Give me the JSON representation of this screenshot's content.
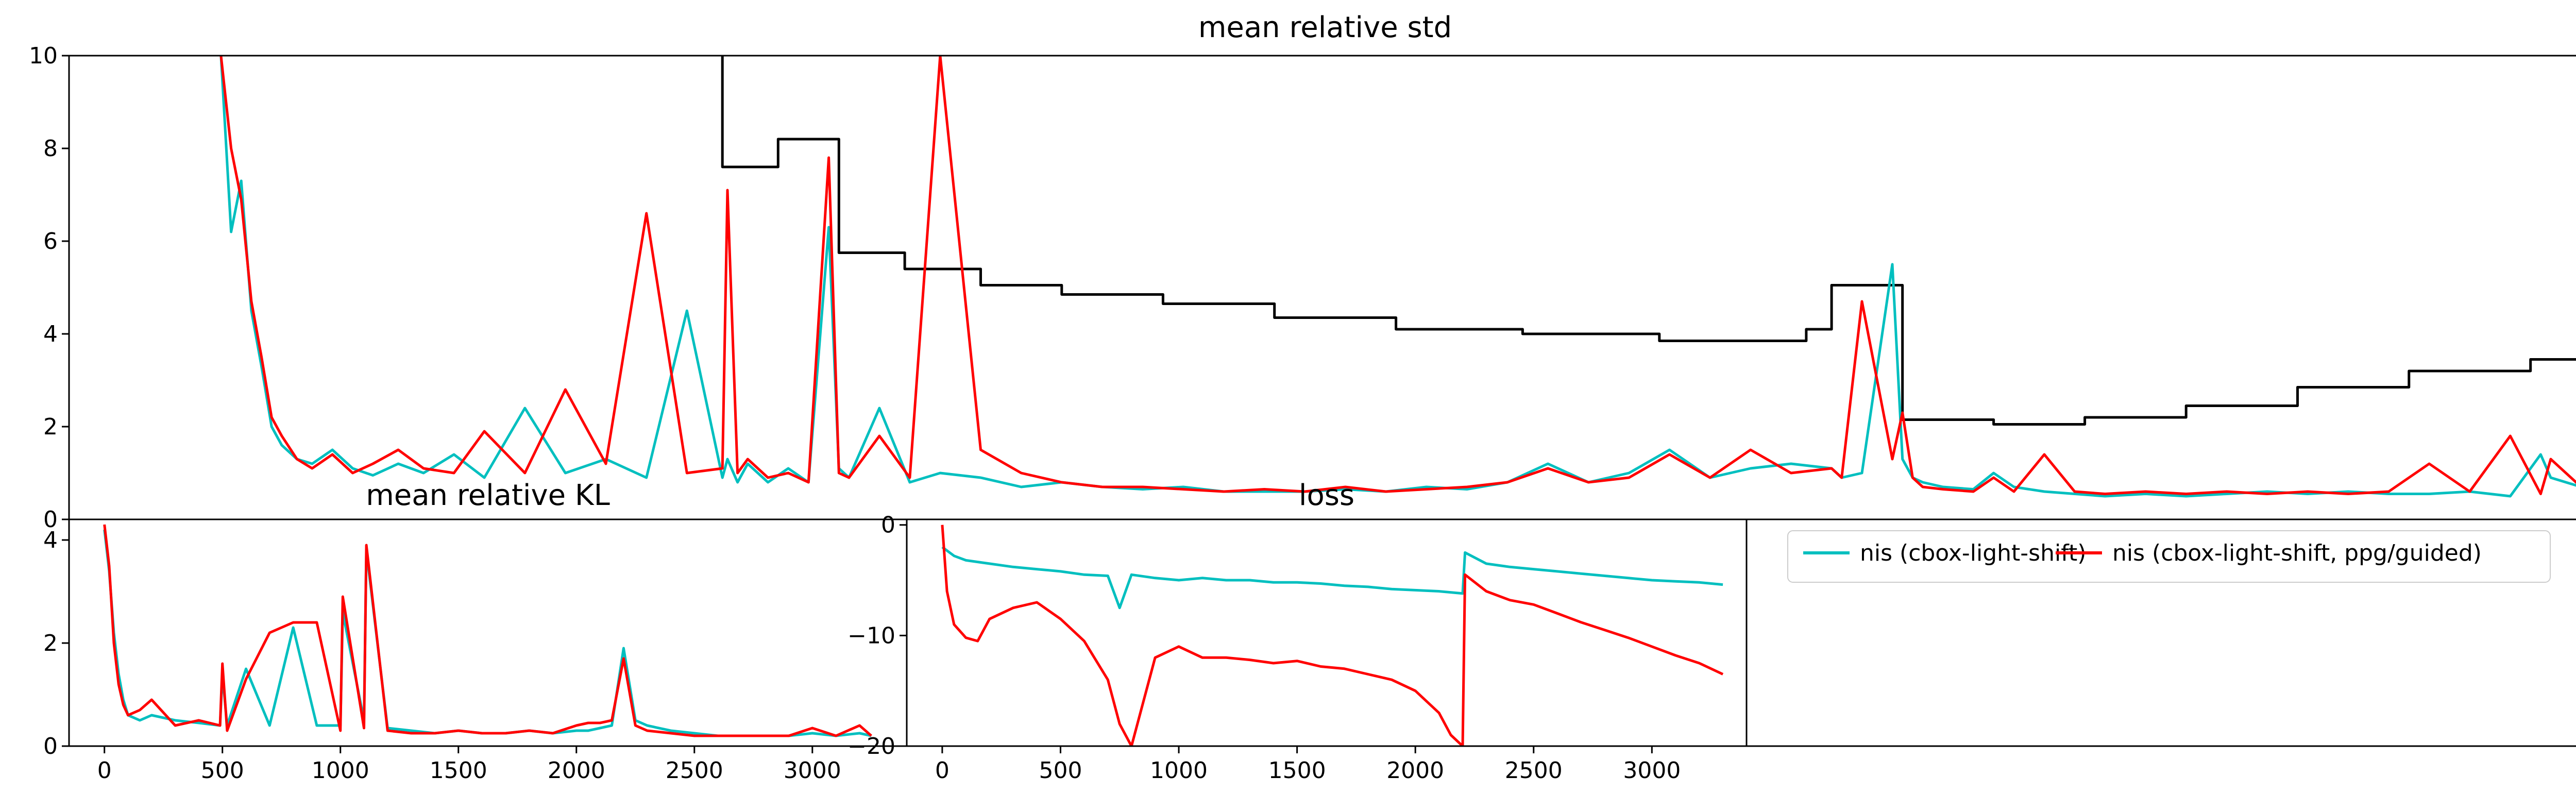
{
  "chart_data": [
    {
      "type": "line",
      "title": "mean relative std",
      "xlabel": "",
      "ylabel": "",
      "xlim": [
        0,
        4960
      ],
      "ylim": [
        0,
        10
      ],
      "grid": false,
      "yticks": [
        "0",
        "2",
        "4",
        "6",
        "8",
        "10"
      ],
      "series": [
        {
          "name": "",
          "color": "#000000",
          "style": "step",
          "x": [
            1290,
            1290,
            1400,
            1400,
            1520,
            1520,
            1650,
            1650,
            1800,
            1800,
            1960,
            1960,
            2160,
            2160,
            2380,
            2380,
            2620,
            2620,
            2870,
            2870,
            3140,
            3140,
            3430,
            3430,
            3480,
            3480,
            3620,
            3620,
            3800,
            3800,
            3980,
            3980,
            4180,
            4180,
            4400,
            4400,
            4620,
            4620,
            4860,
            4860,
            5070
          ],
          "y": [
            10,
            7.6,
            7.6,
            8.2,
            8.2,
            5.75,
            5.75,
            5.4,
            5.4,
            5.05,
            5.05,
            4.85,
            4.85,
            4.65,
            4.65,
            4.35,
            4.35,
            4.1,
            4.1,
            4.0,
            4.0,
            3.85,
            3.85,
            4.1,
            4.1,
            5.05,
            5.05,
            2.15,
            2.15,
            2.05,
            2.05,
            2.2,
            2.2,
            2.45,
            2.45,
            2.85,
            2.85,
            3.2,
            3.2,
            3.45,
            3.45
          ]
        },
        {
          "name": "",
          "color": "#00bfbf",
          "x": [
            300,
            320,
            340,
            360,
            380,
            400,
            420,
            450,
            480,
            520,
            560,
            600,
            650,
            700,
            760,
            820,
            900,
            980,
            1060,
            1140,
            1220,
            1290,
            1300,
            1320,
            1340,
            1380,
            1420,
            1460,
            1500,
            1520,
            1540,
            1600,
            1660,
            1720,
            1800,
            1880,
            1960,
            2040,
            2120,
            2200,
            2280,
            2360,
            2440,
            2520,
            2600,
            2680,
            2760,
            2840,
            2920,
            3000,
            3080,
            3160,
            3240,
            3320,
            3400,
            3480,
            3500,
            3540,
            3600,
            3620,
            3640,
            3660,
            3700,
            3760,
            3800,
            3840,
            3900,
            3960,
            4020,
            4100,
            4180,
            4260,
            4340,
            4420,
            4500,
            4580,
            4660,
            4740,
            4820,
            4880,
            4900,
            4960
          ],
          "y": [
            10,
            6.2,
            7.3,
            4.5,
            3.3,
            2.0,
            1.6,
            1.3,
            1.2,
            1.5,
            1.1,
            0.95,
            1.2,
            1.0,
            1.4,
            0.9,
            2.4,
            1.0,
            1.3,
            0.9,
            4.5,
            0.9,
            1.3,
            0.8,
            1.2,
            0.8,
            1.1,
            0.8,
            6.3,
            1.1,
            0.9,
            2.4,
            0.8,
            1.0,
            0.9,
            0.7,
            0.8,
            0.7,
            0.65,
            0.7,
            0.6,
            0.6,
            0.6,
            0.65,
            0.6,
            0.7,
            0.65,
            0.8,
            1.2,
            0.8,
            1.0,
            1.5,
            0.9,
            1.1,
            1.2,
            1.1,
            0.9,
            1.0,
            5.5,
            1.3,
            0.9,
            0.8,
            0.7,
            0.65,
            1.0,
            0.7,
            0.6,
            0.55,
            0.5,
            0.55,
            0.5,
            0.55,
            0.6,
            0.55,
            0.6,
            0.55,
            0.55,
            0.6,
            0.5,
            1.4,
            0.9,
            0.7
          ]
        },
        {
          "name": "",
          "color": "#ff0000",
          "x": [
            300,
            320,
            340,
            360,
            380,
            400,
            420,
            450,
            480,
            520,
            560,
            600,
            650,
            700,
            760,
            820,
            900,
            980,
            1060,
            1140,
            1220,
            1290,
            1300,
            1320,
            1340,
            1380,
            1420,
            1460,
            1500,
            1520,
            1540,
            1600,
            1660,
            1720,
            1800,
            1880,
            1960,
            2040,
            2120,
            2200,
            2280,
            2360,
            2440,
            2520,
            2600,
            2680,
            2760,
            2840,
            2920,
            3000,
            3080,
            3160,
            3240,
            3320,
            3400,
            3480,
            3500,
            3540,
            3600,
            3620,
            3640,
            3660,
            3700,
            3760,
            3800,
            3840,
            3900,
            3960,
            4020,
            4100,
            4180,
            4260,
            4340,
            4420,
            4500,
            4580,
            4660,
            4740,
            4820,
            4880,
            4900,
            4960
          ],
          "y": [
            10,
            8.0,
            6.9,
            4.7,
            3.5,
            2.2,
            1.8,
            1.3,
            1.1,
            1.4,
            1.0,
            1.2,
            1.5,
            1.1,
            1.0,
            1.9,
            1.0,
            2.8,
            1.2,
            6.6,
            1.0,
            1.1,
            7.1,
            1.0,
            1.3,
            0.9,
            1.0,
            0.8,
            7.8,
            1.0,
            0.9,
            1.8,
            0.9,
            10.0,
            1.5,
            1.0,
            0.8,
            0.7,
            0.7,
            0.65,
            0.6,
            0.65,
            0.6,
            0.7,
            0.6,
            0.65,
            0.7,
            0.8,
            1.1,
            0.8,
            0.9,
            1.4,
            0.9,
            1.5,
            1.0,
            1.1,
            0.9,
            4.7,
            1.3,
            2.3,
            0.9,
            0.7,
            0.65,
            0.6,
            0.9,
            0.6,
            1.4,
            0.6,
            0.55,
            0.6,
            0.55,
            0.6,
            0.55,
            0.6,
            0.55,
            0.6,
            1.2,
            0.6,
            1.8,
            0.55,
            1.3,
            0.7
          ]
        }
      ]
    },
    {
      "type": "line",
      "title": "mean relative KL",
      "xlabel": "",
      "ylabel": "",
      "xlim": [
        -150,
        3400
      ],
      "ylim": [
        0,
        4.4
      ],
      "grid": false,
      "xticks": [
        "0",
        "500",
        "1000",
        "1500",
        "2000",
        "2500",
        "3000"
      ],
      "yticks": [
        "0",
        "2",
        "4"
      ],
      "series": [
        {
          "name": "",
          "color": "#00bfbf",
          "x": [
            0,
            20,
            40,
            60,
            80,
            100,
            150,
            200,
            300,
            400,
            490,
            500,
            520,
            600,
            700,
            800,
            900,
            1000,
            1010,
            1100,
            1110,
            1200,
            1300,
            1400,
            1500,
            1600,
            1700,
            1800,
            1900,
            2000,
            2050,
            2100,
            2150,
            2200,
            2250,
            2300,
            2400,
            2500,
            2600,
            2700,
            2800,
            2900,
            3000,
            3100,
            3200,
            3250
          ],
          "y": [
            4.2,
            3.4,
            2.2,
            1.4,
            0.9,
            0.6,
            0.5,
            0.6,
            0.5,
            0.45,
            0.4,
            1.4,
            0.4,
            1.5,
            0.4,
            2.3,
            0.4,
            0.4,
            2.6,
            0.5,
            3.8,
            0.35,
            0.3,
            0.25,
            0.3,
            0.25,
            0.25,
            0.3,
            0.25,
            0.3,
            0.3,
            0.35,
            0.4,
            1.9,
            0.5,
            0.4,
            0.3,
            0.25,
            0.2,
            0.2,
            0.2,
            0.2,
            0.25,
            0.2,
            0.25,
            0.2
          ]
        },
        {
          "name": "",
          "color": "#ff0000",
          "x": [
            0,
            20,
            40,
            60,
            80,
            100,
            150,
            200,
            300,
            400,
            490,
            500,
            520,
            600,
            700,
            800,
            900,
            1000,
            1010,
            1100,
            1110,
            1200,
            1300,
            1400,
            1500,
            1600,
            1700,
            1800,
            1900,
            2000,
            2050,
            2100,
            2150,
            2200,
            2250,
            2300,
            2400,
            2500,
            2600,
            2700,
            2800,
            2900,
            3000,
            3100,
            3200,
            3250
          ],
          "y": [
            4.3,
            3.5,
            2.0,
            1.2,
            0.8,
            0.6,
            0.7,
            0.9,
            0.4,
            0.5,
            0.4,
            1.6,
            0.3,
            1.3,
            2.2,
            2.4,
            2.4,
            0.3,
            2.9,
            0.35,
            3.9,
            0.3,
            0.25,
            0.25,
            0.3,
            0.25,
            0.25,
            0.3,
            0.25,
            0.4,
            0.45,
            0.45,
            0.5,
            1.7,
            0.4,
            0.3,
            0.25,
            0.2,
            0.2,
            0.2,
            0.2,
            0.2,
            0.35,
            0.2,
            0.4,
            0.2
          ]
        }
      ]
    },
    {
      "type": "line",
      "title": "loss",
      "xlabel": "",
      "ylabel": "",
      "xlim": [
        -150,
        3400
      ],
      "ylim": [
        -20,
        0.5
      ],
      "grid": false,
      "xticks": [
        "0",
        "500",
        "1000",
        "1500",
        "2000",
        "2500",
        "3000"
      ],
      "yticks": [
        "0",
        "−10",
        "−20"
      ],
      "series": [
        {
          "name": "nis (cbox-light-shift)",
          "color": "#00bfbf",
          "x": [
            0,
            50,
            100,
            200,
            300,
            400,
            500,
            600,
            700,
            750,
            800,
            900,
            1000,
            1100,
            1200,
            1300,
            1400,
            1500,
            1600,
            1700,
            1800,
            1900,
            2000,
            2100,
            2200,
            2210,
            2300,
            2400,
            2500,
            2600,
            2700,
            2800,
            2900,
            3000,
            3100,
            3200,
            3300
          ],
          "y": [
            -2.0,
            -2.8,
            -3.2,
            -3.5,
            -3.8,
            -4.0,
            -4.2,
            -4.5,
            -4.6,
            -7.5,
            -4.5,
            -4.8,
            -5.0,
            -4.8,
            -5.0,
            -5.0,
            -5.2,
            -5.2,
            -5.3,
            -5.5,
            -5.6,
            -5.8,
            -5.9,
            -6.0,
            -6.2,
            -2.5,
            -3.5,
            -3.8,
            -4.0,
            -4.2,
            -4.4,
            -4.6,
            -4.8,
            -5.0,
            -5.1,
            -5.2,
            -5.4
          ]
        },
        {
          "name": "nis (cbox-light-shift, ppg/guided)",
          "color": "#ff0000",
          "x": [
            0,
            20,
            50,
            100,
            150,
            200,
            300,
            400,
            500,
            600,
            700,
            750,
            800,
            900,
            1000,
            1100,
            1200,
            1300,
            1400,
            1500,
            1600,
            1700,
            1800,
            1900,
            2000,
            2100,
            2150,
            2200,
            2210,
            2300,
            2400,
            2500,
            2600,
            2700,
            2800,
            2900,
            3000,
            3100,
            3200,
            3300
          ],
          "y": [
            0,
            -6.0,
            -9.0,
            -10.2,
            -10.5,
            -8.5,
            -7.5,
            -7.0,
            -8.5,
            -10.5,
            -14.0,
            -18.0,
            -20.0,
            -12.0,
            -11.0,
            -12.0,
            -12.0,
            -12.2,
            -12.5,
            -12.3,
            -12.8,
            -13.0,
            -13.5,
            -14.0,
            -15.0,
            -17.0,
            -19.0,
            -20.0,
            -4.5,
            -6.0,
            -6.8,
            -7.2,
            -8.0,
            -8.8,
            -9.5,
            -10.2,
            -11.0,
            -11.8,
            -12.5,
            -13.5
          ]
        }
      ]
    }
  ],
  "legend": {
    "placement": "upper left",
    "entries": [
      {
        "label": "nis (cbox-light-shift)",
        "color": "#00bfbf"
      },
      {
        "label": "nis (cbox-light-shift, ppg/guided)",
        "color": "#ff0000"
      }
    ]
  }
}
